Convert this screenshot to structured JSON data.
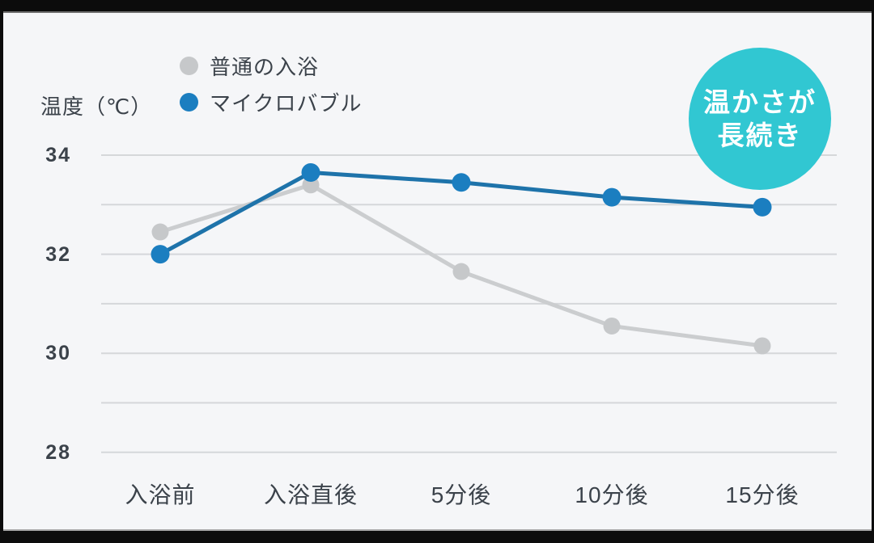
{
  "chart_data": {
    "type": "line",
    "title": "",
    "ylabel": "温度（℃）",
    "xlabel": "",
    "categories": [
      "入浴前",
      "入浴直後",
      "5分後",
      "10分後",
      "15分後"
    ],
    "series": [
      {
        "name": "普通の入浴",
        "color": "#c6c8ca",
        "line_color": "#cbcdcf",
        "values": [
          32.45,
          33.4,
          31.65,
          30.55,
          30.15
        ]
      },
      {
        "name": "マイクロバブル",
        "color": "#1b7ec0",
        "line_color": "#1e73aa",
        "values": [
          32.0,
          33.65,
          33.45,
          33.15,
          32.95
        ]
      }
    ],
    "ylim": [
      28,
      34
    ],
    "yticks": [
      34,
      32,
      30,
      28
    ],
    "grid": true,
    "grid_step": 1,
    "legend_position": "top-left",
    "annotation": "温かさが長続き"
  },
  "badge": {
    "line1": "温かさが",
    "line2": "長続き",
    "color": "#31c7d2",
    "text_color": "#ffffff"
  },
  "colors": {
    "background": "#f5f6f8",
    "frame": "#0c0c0c",
    "grid": "#d5d7da",
    "text": "#3b424a"
  }
}
